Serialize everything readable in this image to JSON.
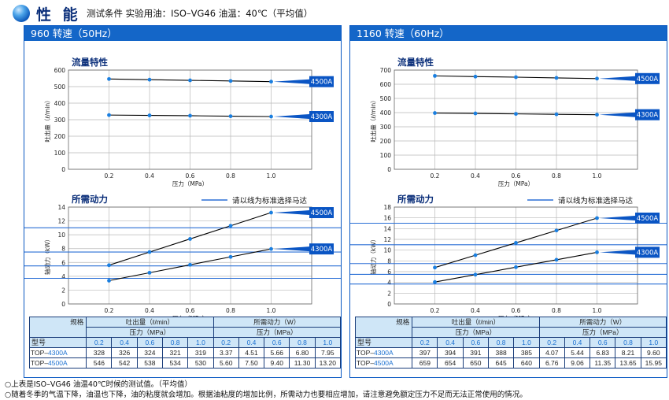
{
  "header": {
    "title": "性 能",
    "conditions": "测试条件 实验用油：ISO–VG46 油温：40℃（平均值）"
  },
  "panels": [
    {
      "head": "960 转速（50Hz）",
      "flow_title": "流量特性",
      "power_title": "所需动力",
      "std_motor_legend": "请以线为标准选择马达",
      "table": {
        "model_label": "规格",
        "type_label": "型号",
        "flow_group": "吐出量（ℓ/min）",
        "power_group": "所需动力（W）",
        "pressure_label": "压力（MPa）",
        "pressures": [
          "0.2",
          "0.4",
          "0.6",
          "0.8",
          "1.0"
        ],
        "rows": [
          {
            "prefix": "TOP–",
            "suffix": "4300A",
            "flow": [
              "328",
              "326",
              "324",
              "321",
              "319"
            ],
            "power": [
              "3.37",
              "4.51",
              "5.66",
              "6.80",
              "7.95"
            ]
          },
          {
            "prefix": "TOP–",
            "suffix": "4500A",
            "flow": [
              "546",
              "542",
              "538",
              "534",
              "530"
            ],
            "power": [
              "5.60",
              "7.50",
              "9.40",
              "11.30",
              "13.20"
            ]
          }
        ]
      }
    },
    {
      "head": "1160 转速（60Hz）",
      "flow_title": "流量特性",
      "power_title": "所需动力",
      "std_motor_legend": "请以线为标准选择马达",
      "table": {
        "model_label": "规格",
        "type_label": "型号",
        "flow_group": "吐出量（ℓ/min）",
        "power_group": "所需动力（W）",
        "pressure_label": "压力（MPa）",
        "pressures": [
          "0.2",
          "0.4",
          "0.6",
          "0.8",
          "1.0"
        ],
        "rows": [
          {
            "prefix": "TOP–",
            "suffix": "4300A",
            "flow": [
              "397",
              "394",
              "391",
              "388",
              "385"
            ],
            "power": [
              "4.07",
              "5.44",
              "6.83",
              "8.21",
              "9.60"
            ]
          },
          {
            "prefix": "TOP–",
            "suffix": "4500A",
            "flow": [
              "659",
              "654",
              "650",
              "645",
              "640"
            ],
            "power": [
              "6.76",
              "9.06",
              "11.35",
              "13.65",
              "15.95"
            ]
          }
        ]
      }
    }
  ],
  "notes": [
    "○上表是ISO–VG46 油温40℃时候的测试值。（平均值）",
    "○随着冬季的气温下降，油温也下降，油的粘度就会增加。根据油粘度的增加比例，所需动力也要相应增加，请注意避免额定压力不足而无法正常使用的情况。"
  ],
  "colors": {
    "accent": "#1466c8",
    "line": "#000000",
    "point": "#1a7fe0",
    "tag": "#0a55c4",
    "std_line": "#2a6fd6",
    "table_head": "#cfe6f7"
  },
  "chart_data": [
    {
      "type": "line",
      "title": "流量特性",
      "panel": "960 转速（50Hz）",
      "xlabel": "压力（MPa）",
      "ylabel": "吐出量（ℓ/min）",
      "x": [
        0.2,
        0.4,
        0.6,
        0.8,
        1.0
      ],
      "xlim": [
        0,
        1.2
      ],
      "xticks": [
        "0.2",
        "0.4",
        "0.6",
        "0.8",
        "1.0"
      ],
      "ylim": [
        0,
        600
      ],
      "yticks": [
        "0",
        "100",
        "200",
        "300",
        "400",
        "500",
        "600"
      ],
      "series": [
        {
          "name": "4500A",
          "values": [
            546,
            542,
            538,
            534,
            530
          ]
        },
        {
          "name": "4300A",
          "values": [
            328,
            326,
            324,
            321,
            319
          ]
        }
      ]
    },
    {
      "type": "line",
      "title": "所需动力",
      "panel": "960 转速（50Hz）",
      "xlabel": "压力（MPa）",
      "ylabel": "轴动力（kW）",
      "x": [
        0.2,
        0.4,
        0.6,
        0.8,
        1.0
      ],
      "xlim": [
        0,
        1.2
      ],
      "xticks": [
        "0.2",
        "0.4",
        "0.6",
        "0.8",
        "1.0"
      ],
      "ylim": [
        0,
        14
      ],
      "yticks": [
        "0",
        "2",
        "4",
        "6",
        "8",
        "10",
        "12",
        "14"
      ],
      "standard_motor_lines": [
        3.7,
        5.5,
        7.5,
        11
      ],
      "series": [
        {
          "name": "4500A",
          "values": [
            5.6,
            7.5,
            9.4,
            11.3,
            13.2
          ]
        },
        {
          "name": "4300A",
          "values": [
            3.37,
            4.51,
            5.66,
            6.8,
            7.95
          ]
        }
      ]
    },
    {
      "type": "line",
      "title": "流量特性",
      "panel": "1160 转速（60Hz）",
      "xlabel": "压力（MPa）",
      "ylabel": "吐出量（ℓ/min）",
      "x": [
        0.2,
        0.4,
        0.6,
        0.8,
        1.0
      ],
      "xlim": [
        0,
        1.2
      ],
      "xticks": [
        "0.2",
        "0.4",
        "0.6",
        "0.8",
        "1.0"
      ],
      "ylim": [
        0,
        700
      ],
      "yticks": [
        "0",
        "100",
        "200",
        "300",
        "400",
        "500",
        "600",
        "700"
      ],
      "series": [
        {
          "name": "4500A",
          "values": [
            659,
            654,
            650,
            645,
            640
          ]
        },
        {
          "name": "4300A",
          "values": [
            397,
            394,
            391,
            388,
            385
          ]
        }
      ]
    },
    {
      "type": "line",
      "title": "所需动力",
      "panel": "1160 转速（60Hz）",
      "xlabel": "压力（MPa）",
      "ylabel": "轴动力（kW）",
      "x": [
        0.2,
        0.4,
        0.6,
        0.8,
        1.0
      ],
      "xlim": [
        0,
        1.2
      ],
      "xticks": [
        "0.2",
        "0.4",
        "0.6",
        "0.8",
        "1.0"
      ],
      "ylim": [
        0,
        18
      ],
      "yticks": [
        "0",
        "2",
        "4",
        "6",
        "8",
        "10",
        "12",
        "14",
        "16",
        "18"
      ],
      "standard_motor_lines": [
        3.7,
        5.5,
        7.5,
        11,
        15
      ],
      "series": [
        {
          "name": "4500A",
          "values": [
            6.76,
            9.06,
            11.35,
            13.65,
            15.95
          ]
        },
        {
          "name": "4300A",
          "values": [
            4.07,
            5.44,
            6.83,
            8.21,
            9.6
          ]
        }
      ]
    }
  ]
}
